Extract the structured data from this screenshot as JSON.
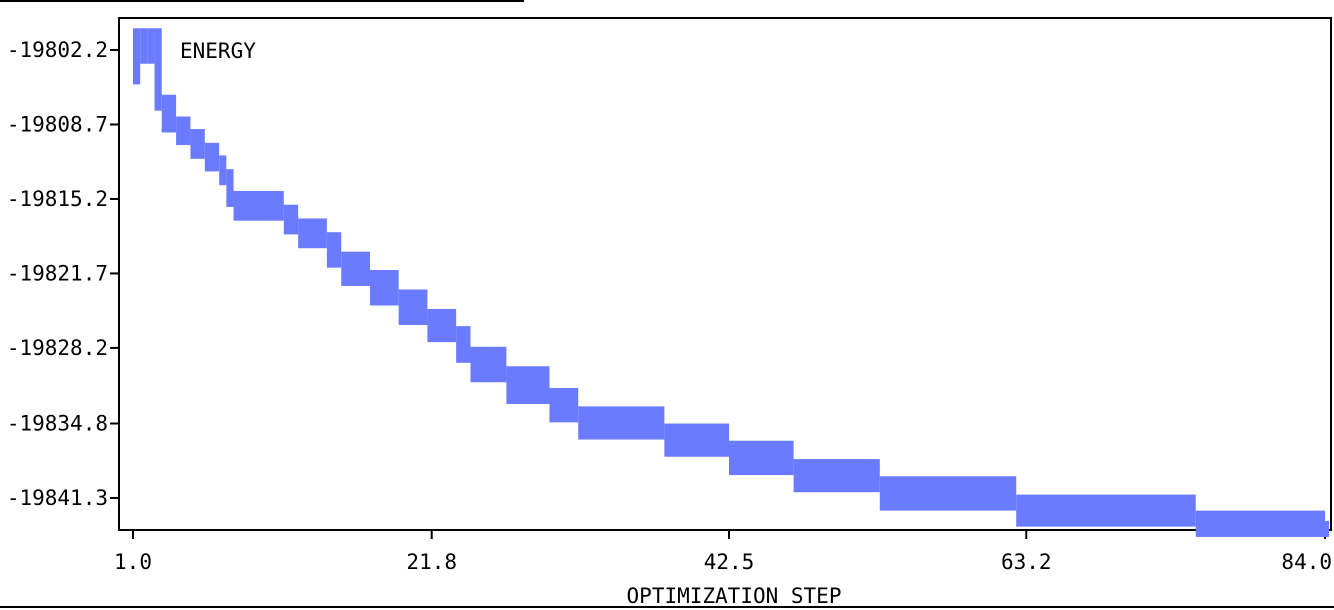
{
  "chart_data": {
    "type": "line",
    "title": "",
    "xlabel": "OPTIMIZATION STEP",
    "ylabel": "",
    "xlim": [
      0.0,
      85.0
    ],
    "ylim": [
      -19845.0,
      -19799.0
    ],
    "x_ticks": [
      1.0,
      21.8,
      42.5,
      63.2,
      84.0
    ],
    "x_tick_labels": [
      "1.0",
      "21.8",
      "42.5",
      "63.2",
      "84.0"
    ],
    "y_ticks": [
      -19802.2,
      -19808.7,
      -19815.2,
      -19821.7,
      -19828.2,
      -19834.8,
      -19841.3
    ],
    "y_tick_labels": [
      "-19802.2",
      "-19808.7",
      "-19815.2",
      "-19821.7",
      "-19828.2",
      "-19834.8",
      "-19841.3"
    ],
    "grid": false,
    "legend_position": "top-left",
    "series": [
      {
        "name": "ENERGY",
        "color": "#6b7bff",
        "x": [
          1.0,
          1.5,
          2.0,
          2.5,
          3.0,
          4.0,
          5.0,
          6.0,
          7.0,
          7.5,
          8.0,
          11.5,
          12.5,
          14.5,
          15.5,
          17.5,
          19.5,
          21.5,
          23.5,
          24.5,
          27.0,
          30.0,
          32.0,
          38.0,
          42.5,
          47.0,
          53.0,
          62.5,
          75.0,
          84.0
        ],
        "y": [
          -19804.5,
          -19801.0,
          -19802.7,
          -19801.0,
          -19806.8,
          -19808.7,
          -19809.8,
          -19811.0,
          -19812.1,
          -19813.3,
          -19815.2,
          -19816.4,
          -19817.6,
          -19818.8,
          -19820.5,
          -19822.1,
          -19823.8,
          -19825.5,
          -19827.0,
          -19828.8,
          -19830.5,
          -19832.4,
          -19834.0,
          -19835.5,
          -19837.0,
          -19838.6,
          -19840.1,
          -19841.7,
          -19843.1,
          -19844.0
        ]
      }
    ]
  }
}
